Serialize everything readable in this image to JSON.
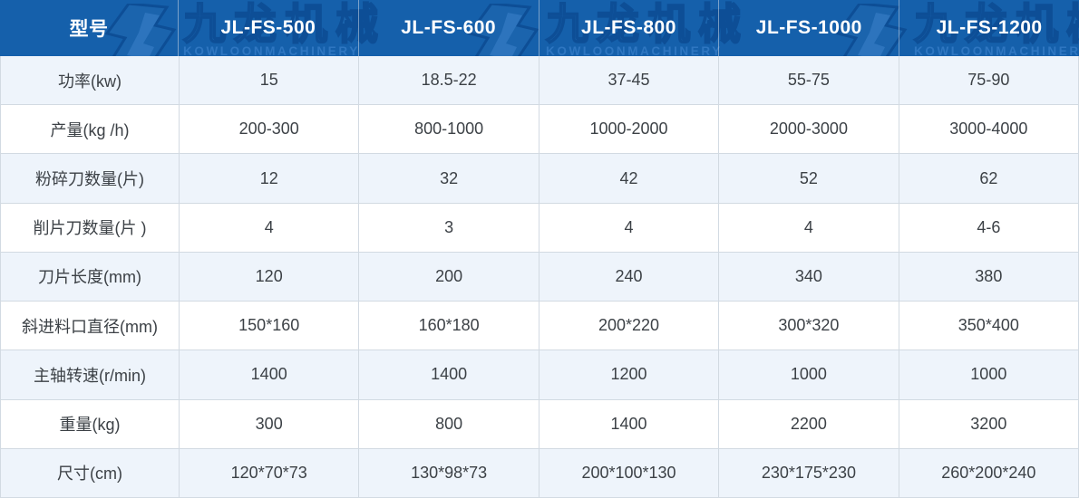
{
  "header": {
    "col0": "型号",
    "models": [
      "JL-FS-500",
      "JL-FS-600",
      "JL-FS-800",
      "JL-FS-1000",
      "JL-FS-1200"
    ],
    "watermark": {
      "cn": "九龙机械",
      "en": "KOWLOONMACHINERY"
    }
  },
  "rows": [
    {
      "label": "功率(kw)",
      "values": [
        "15",
        "18.5-22",
        "37-45",
        "55-75",
        "75-90"
      ]
    },
    {
      "label": "产量(kg /h)",
      "values": [
        "200-300",
        "800-1000",
        "1000-2000",
        "2000-3000",
        "3000-4000"
      ]
    },
    {
      "label": "粉碎刀数量(片)",
      "values": [
        "12",
        "32",
        "42",
        "52",
        "62"
      ]
    },
    {
      "label": "削片刀数量(片 )",
      "values": [
        "4",
        "3",
        "4",
        "4",
        "4-6"
      ]
    },
    {
      "label": "刀片长度(mm)",
      "values": [
        "120",
        "200",
        "240",
        "340",
        "380"
      ]
    },
    {
      "label": "斜进料口直径(mm)",
      "values": [
        "150*160",
        "160*180",
        "200*220",
        "300*320",
        "350*400"
      ]
    },
    {
      "label": "主轴转速(r/min)",
      "values": [
        "1400",
        "1400",
        "1200",
        "1000",
        "1000"
      ]
    },
    {
      "label": "重量(kg)",
      "values": [
        "300",
        "800",
        "1400",
        "2200",
        "3200"
      ]
    },
    {
      "label": "尺寸(cm)",
      "values": [
        "120*70*73",
        "130*98*73",
        "200*100*130",
        "230*175*230",
        "260*200*240"
      ]
    }
  ],
  "colors": {
    "header_bg": "#1560ab",
    "header_text": "#ffffff",
    "stripe_row": "#eef4fb",
    "plain_row": "#ffffff",
    "border": "#d2dae2",
    "cell_text": "#3c4146",
    "watermark_fill": "#1b64ad",
    "watermark_stroke": "#0d4e96",
    "watermark_en": "#2e76c1"
  }
}
